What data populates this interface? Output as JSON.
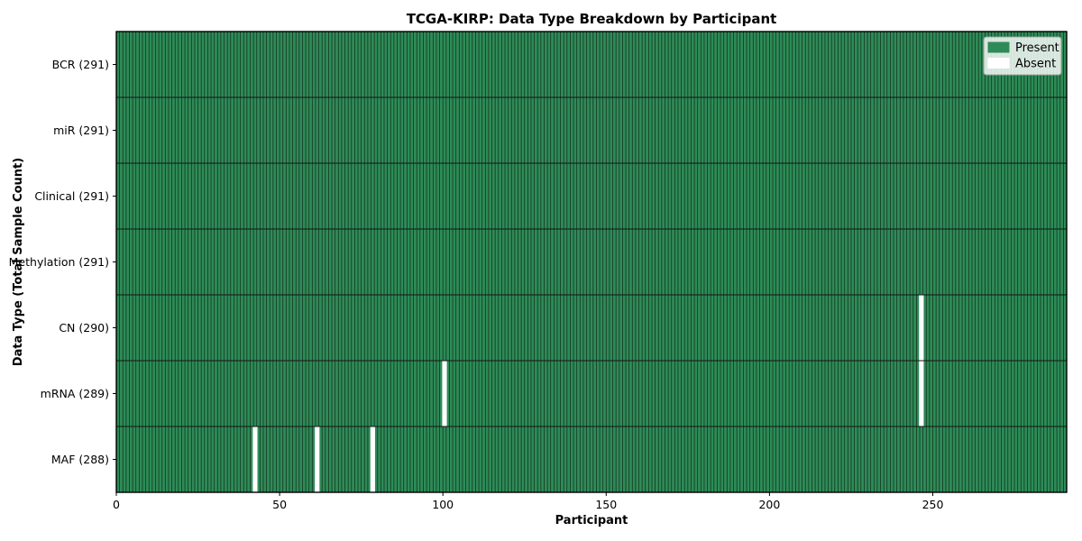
{
  "chart_data": {
    "type": "heatmap",
    "title": "TCGA-KIRP: Data Type Breakdown by Participant",
    "xlabel": "Participant",
    "ylabel": "Data Type (Total Sample Count)",
    "x_ticks": [
      0,
      50,
      100,
      150,
      200,
      250
    ],
    "x_range": [
      0,
      291
    ],
    "n_participants": 291,
    "rows": [
      {
        "label": "BCR (291)",
        "data_type": "BCR",
        "present_count": 291,
        "absent_participants": []
      },
      {
        "label": "miR (291)",
        "data_type": "miR",
        "present_count": 291,
        "absent_participants": []
      },
      {
        "label": "Clinical (291)",
        "data_type": "Clinical",
        "present_count": 291,
        "absent_participants": []
      },
      {
        "label": "Methylation (291)",
        "data_type": "Methylation",
        "present_count": 291,
        "absent_participants": []
      },
      {
        "label": "CN (290)",
        "data_type": "CN",
        "present_count": 290,
        "absent_participants": [
          246
        ]
      },
      {
        "label": "mRNA (289)",
        "data_type": "mRNA",
        "present_count": 289,
        "absent_participants": [
          100,
          246
        ]
      },
      {
        "label": "MAF (288)",
        "data_type": "MAF",
        "present_count": 288,
        "absent_participants": [
          42,
          61,
          78
        ]
      }
    ],
    "legend": {
      "position": "upper right",
      "items": [
        {
          "label": "Present",
          "color": "#2e8b57"
        },
        {
          "label": "Absent",
          "color": "#ffffff"
        }
      ]
    },
    "colors": {
      "present": "#2e8b57",
      "absent": "#ffffff",
      "cell_edge": "#12301f",
      "row_divider": "#141414",
      "plot_border": "#000000",
      "tick": "#000000",
      "text": "#000000"
    },
    "grid": false
  }
}
